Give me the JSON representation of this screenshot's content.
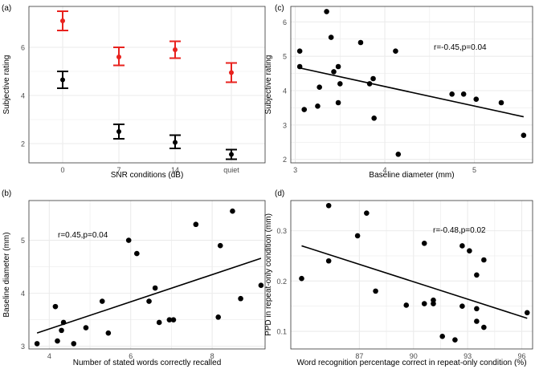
{
  "figure": {
    "colors": {
      "panel_bg": "#ffffff",
      "grid": "#ebebeb",
      "axis_text": "#4d4d4d",
      "title_text": "#000000",
      "point": "#000000",
      "red": "#e8221e",
      "black": "#000000",
      "line": "#000000"
    }
  },
  "chart_data": [
    {
      "id": "a",
      "type": "errorbar",
      "panel_label": "(a)",
      "xlabel": "SNR conditions (dB)",
      "ylabel": "Subjective rating",
      "categories": [
        "0",
        "7",
        "14",
        "quiet"
      ],
      "ylim": [
        1.2,
        7.7
      ],
      "yticks": [
        2,
        4,
        6
      ],
      "series": [
        {
          "name": "red",
          "color": "#e8221e",
          "values": [
            7.1,
            5.6,
            5.9,
            4.95
          ],
          "lower": [
            6.7,
            5.25,
            5.55,
            4.55
          ],
          "upper": [
            7.5,
            6.0,
            6.25,
            5.35
          ]
        },
        {
          "name": "black",
          "color": "#000000",
          "values": [
            4.65,
            2.5,
            2.05,
            1.55
          ],
          "lower": [
            4.3,
            2.2,
            1.8,
            1.35
          ],
          "upper": [
            5.0,
            2.8,
            2.35,
            1.75
          ]
        }
      ]
    },
    {
      "id": "c",
      "type": "scatter",
      "panel_label": "(c)",
      "xlabel": "Baseline diameter (mm)",
      "ylabel": "Subjective rating",
      "xlim": [
        2.95,
        5.65
      ],
      "ylim": [
        1.9,
        6.45
      ],
      "xticks": [
        3,
        4,
        5
      ],
      "yticks": [
        2,
        3,
        4,
        5,
        6
      ],
      "annotation": "r=-0.45,p=0.04",
      "points": [
        [
          3.05,
          5.15
        ],
        [
          3.05,
          4.7
        ],
        [
          3.1,
          3.45
        ],
        [
          3.25,
          3.55
        ],
        [
          3.27,
          4.1
        ],
        [
          3.35,
          6.3
        ],
        [
          3.4,
          5.55
        ],
        [
          3.43,
          4.55
        ],
        [
          3.48,
          4.7
        ],
        [
          3.48,
          3.65
        ],
        [
          3.5,
          4.2
        ],
        [
          3.73,
          5.4
        ],
        [
          3.83,
          4.2
        ],
        [
          3.87,
          4.35
        ],
        [
          3.88,
          3.2
        ],
        [
          4.12,
          5.15
        ],
        [
          4.15,
          2.15
        ],
        [
          4.75,
          3.9
        ],
        [
          4.88,
          3.9
        ],
        [
          5.02,
          3.75
        ],
        [
          5.3,
          3.65
        ],
        [
          5.55,
          2.7
        ]
      ],
      "fit": [
        [
          3.05,
          4.66
        ],
        [
          5.55,
          3.24
        ]
      ]
    },
    {
      "id": "b",
      "type": "scatter",
      "panel_label": "(b)",
      "xlabel": "Number of stated words correctly recalled",
      "ylabel": "Baseline diameter (mm)",
      "xlim": [
        3.5,
        9.3
      ],
      "ylim": [
        2.95,
        5.75
      ],
      "xticks": [
        4,
        6,
        8
      ],
      "yticks": [
        3,
        4,
        5
      ],
      "annotation": "r=0.45,p=0.04",
      "points": [
        [
          3.7,
          3.05
        ],
        [
          4.15,
          3.75
        ],
        [
          4.2,
          3.1
        ],
        [
          4.3,
          3.3
        ],
        [
          4.35,
          3.45
        ],
        [
          4.6,
          3.05
        ],
        [
          4.9,
          3.35
        ],
        [
          5.3,
          3.85
        ],
        [
          5.45,
          3.25
        ],
        [
          5.95,
          5.0
        ],
        [
          6.15,
          4.75
        ],
        [
          6.45,
          3.85
        ],
        [
          6.6,
          4.1
        ],
        [
          6.7,
          3.45
        ],
        [
          6.95,
          3.5
        ],
        [
          7.05,
          3.5
        ],
        [
          7.6,
          5.3
        ],
        [
          8.15,
          3.55
        ],
        [
          8.2,
          4.9
        ],
        [
          8.5,
          5.55
        ],
        [
          8.7,
          3.9
        ],
        [
          9.2,
          4.15
        ]
      ],
      "fit": [
        [
          3.7,
          3.25
        ],
        [
          9.2,
          4.66
        ]
      ]
    },
    {
      "id": "d",
      "type": "scatter",
      "panel_label": "(d)",
      "xlabel": "Word recognition percentage correct in repeat-only condition (%)",
      "ylabel": "PPD in repeat-only condition (mm)",
      "xlim": [
        83.2,
        96.6
      ],
      "ylim": [
        0.065,
        0.36
      ],
      "xticks": [
        87,
        90,
        93,
        96
      ],
      "yticks": [
        0.1,
        0.2,
        0.3
      ],
      "annotation": "r=-0.48,p=0.02",
      "points": [
        [
          83.8,
          0.205
        ],
        [
          85.3,
          0.35
        ],
        [
          85.3,
          0.24
        ],
        [
          86.9,
          0.29
        ],
        [
          87.4,
          0.335
        ],
        [
          87.9,
          0.18
        ],
        [
          89.6,
          0.152
        ],
        [
          90.6,
          0.155
        ],
        [
          90.6,
          0.275
        ],
        [
          91.1,
          0.155
        ],
        [
          91.1,
          0.162
        ],
        [
          91.6,
          0.09
        ],
        [
          92.3,
          0.083
        ],
        [
          92.7,
          0.15
        ],
        [
          92.7,
          0.27
        ],
        [
          93.1,
          0.26
        ],
        [
          93.5,
          0.212
        ],
        [
          93.5,
          0.145
        ],
        [
          93.5,
          0.12
        ],
        [
          93.9,
          0.242
        ],
        [
          93.9,
          0.108
        ],
        [
          96.3,
          0.137
        ]
      ],
      "fit": [
        [
          83.8,
          0.27
        ],
        [
          96.3,
          0.126
        ]
      ]
    }
  ]
}
